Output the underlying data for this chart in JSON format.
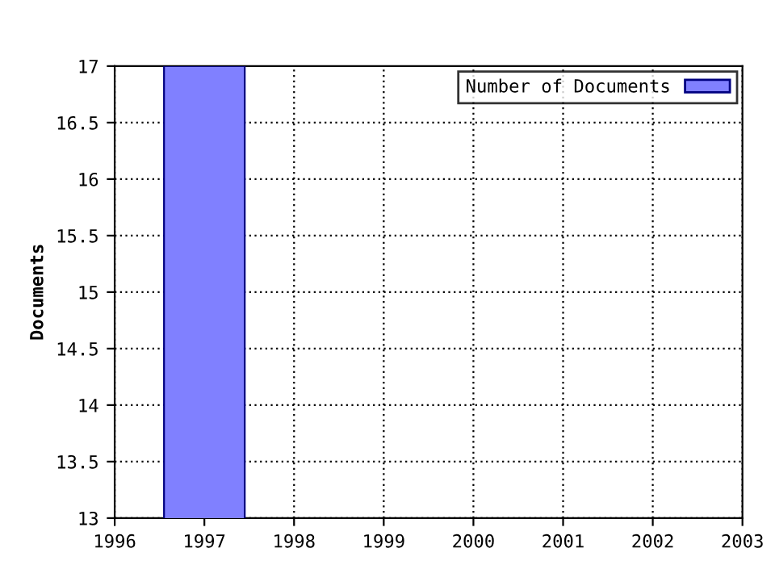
{
  "chart_data": {
    "type": "bar",
    "ylabel": "Documents",
    "x": [
      1997
    ],
    "series": [
      {
        "name": "Number of Documents",
        "color": "#8080ff",
        "values": [
          17
        ]
      }
    ],
    "xlim": [
      1996,
      2003
    ],
    "xticks": [
      1996,
      1997,
      1998,
      1999,
      2000,
      2001,
      2002,
      2003
    ],
    "ylim": [
      13,
      17
    ],
    "yticks": [
      13,
      13.5,
      14,
      14.5,
      15,
      15.5,
      16,
      16.5,
      17
    ],
    "grid": true,
    "legend": "top right"
  }
}
